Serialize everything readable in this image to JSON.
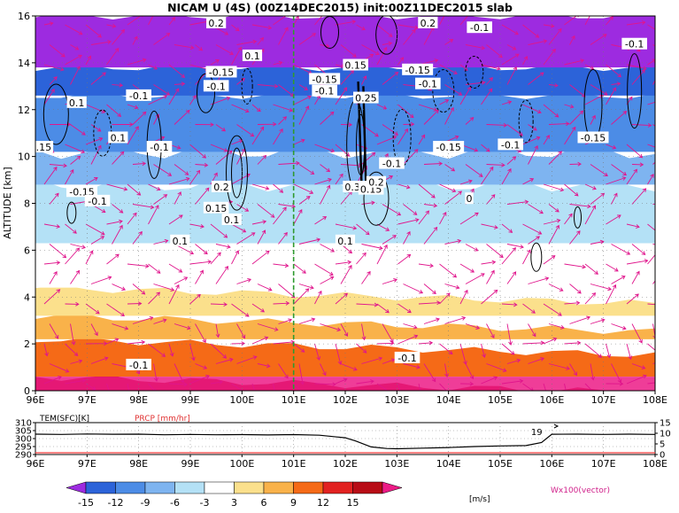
{
  "title": "NICAM U (4S) (00Z14DEC2015) init:00Z11DEC2015 slab",
  "chart_data": [
    {
      "type": "heatmap",
      "title": "NICAM U (4S) (00Z14DEC2015) init:00Z11DEC2015 slab",
      "ylabel": "ALTITUDE [km]",
      "x_ticks": [
        "96E",
        "97E",
        "98E",
        "99E",
        "100E",
        "101E",
        "102E",
        "103E",
        "104E",
        "105E",
        "106E",
        "107E",
        "108E"
      ],
      "xlim": [
        96,
        108
      ],
      "y_ticks": [
        "0",
        "2",
        "4",
        "6",
        "8",
        "10",
        "12",
        "14",
        "16"
      ],
      "ylim": [
        0,
        16
      ],
      "marker_line_x": 101,
      "shading_layers": [
        {
          "top_km": 0.6,
          "value": 15
        },
        {
          "top_km": 2.2,
          "value": 12
        },
        {
          "top_km": 3.2,
          "value": 9
        },
        {
          "top_km": 4.4,
          "value": 6
        },
        {
          "top_km": 6.3,
          "value": 3
        },
        {
          "top_km": 8.8,
          "value": -3
        },
        {
          "top_km": 10.2,
          "value": -6
        },
        {
          "top_km": 12.6,
          "value": -9
        },
        {
          "top_km": 13.8,
          "value": -12
        },
        {
          "top_km": 16.0,
          "value": -15
        }
      ],
      "contour_labels": [
        {
          "text": "0.2",
          "x": 99.5,
          "y": 15.7
        },
        {
          "text": "0.2",
          "x": 103.6,
          "y": 15.7
        },
        {
          "text": "-0.1",
          "x": 104.6,
          "y": 15.5
        },
        {
          "text": "-0.1",
          "x": 107.6,
          "y": 14.8
        },
        {
          "text": "0.1",
          "x": 100.2,
          "y": 14.3
        },
        {
          "text": "0.15",
          "x": 102.2,
          "y": 13.9
        },
        {
          "text": "-0.15",
          "x": 99.6,
          "y": 13.6
        },
        {
          "text": "-0.15",
          "x": 101.6,
          "y": 13.3
        },
        {
          "text": "-0.15",
          "x": 103.4,
          "y": 13.7
        },
        {
          "text": "-0.1",
          "x": 99.5,
          "y": 13.0
        },
        {
          "text": "-0.1",
          "x": 101.6,
          "y": 12.8
        },
        {
          "text": "-0.1",
          "x": 103.6,
          "y": 13.1
        },
        {
          "text": "-0.1",
          "x": 98.0,
          "y": 12.6
        },
        {
          "text": "0.25",
          "x": 102.4,
          "y": 12.5
        },
        {
          "text": "0.1",
          "x": 96.8,
          "y": 12.3
        },
        {
          "text": "0.1",
          "x": 97.6,
          "y": 10.8
        },
        {
          "text": "-0.1",
          "x": 98.4,
          "y": 10.4
        },
        {
          "text": "-0.15",
          "x": 104.0,
          "y": 10.4
        },
        {
          "text": "-0.1",
          "x": 105.2,
          "y": 10.5
        },
        {
          "text": "-0.15",
          "x": 106.8,
          "y": 10.8
        },
        {
          "text": "-0.1",
          "x": 102.9,
          "y": 9.7
        },
        {
          "text": "0.15",
          "x": 96.1,
          "y": 10.4
        },
        {
          "text": "-0.15",
          "x": 96.9,
          "y": 8.5
        },
        {
          "text": "-0.1",
          "x": 97.2,
          "y": 8.1
        },
        {
          "text": "0.2",
          "x": 99.6,
          "y": 8.7
        },
        {
          "text": "0.35",
          "x": 102.2,
          "y": 8.7
        },
        {
          "text": "0.15",
          "x": 102.5,
          "y": 8.6
        },
        {
          "text": "0.2",
          "x": 102.6,
          "y": 8.9
        },
        {
          "text": "0.15",
          "x": 99.5,
          "y": 7.8
        },
        {
          "text": "0.1",
          "x": 99.8,
          "y": 7.3
        },
        {
          "text": "0.1",
          "x": 98.8,
          "y": 6.4
        },
        {
          "text": "0.1",
          "x": 102.0,
          "y": 6.4
        },
        {
          "text": "0",
          "x": 104.4,
          "y": 8.2
        },
        {
          "text": "-0.1",
          "x": 98.0,
          "y": 1.1
        },
        {
          "text": "-0.1",
          "x": 103.2,
          "y": 1.4
        }
      ]
    },
    {
      "type": "line",
      "series": [
        {
          "name": "TEM(SFC)[K]",
          "unit": "[K]"
        },
        {
          "name": "PRCP",
          "unit": "[mm/hr]"
        }
      ],
      "legend_labels": [
        "TEM(SFC)[K]",
        "PRCP [mm/hr]"
      ],
      "left_ticks": [
        "310",
        "305",
        "300",
        "295",
        "290"
      ],
      "right_ticks": [
        "15",
        "10",
        "5",
        "0"
      ],
      "x_ticks": [
        "96E",
        "97E",
        "98E",
        "99E",
        "100E",
        "101E",
        "102E",
        "103E",
        "104E",
        "105E",
        "106E",
        "107E",
        "108E"
      ],
      "xlim": [
        96,
        108
      ],
      "ylim_left": [
        290,
        310
      ],
      "ylim_right": [
        0,
        15
      ],
      "tem": {
        "x": [
          96,
          96.5,
          97,
          97.5,
          98,
          98.5,
          99,
          99.5,
          100,
          100.5,
          101,
          101.5,
          102,
          102.2,
          102.5,
          102.8,
          103,
          103.5,
          104,
          104.5,
          105,
          105.5,
          105.8,
          106,
          106.5,
          107,
          107.5,
          108
        ],
        "y": [
          302.8,
          302.6,
          302.9,
          302.7,
          302.8,
          302.4,
          302.6,
          302.4,
          302.5,
          302.3,
          302.5,
          302.1,
          300.5,
          298.5,
          294.8,
          293.8,
          293.6,
          294.0,
          294.4,
          295.0,
          295.4,
          295.6,
          297.5,
          302.7,
          302.8,
          302.6,
          302.8,
          302.6
        ]
      },
      "annotation": {
        "text": "19",
        "x": 105.7,
        "y": 304.5
      }
    }
  ],
  "colorbar": {
    "ticks": [
      "-15",
      "-12",
      "-9",
      "-6",
      "-3",
      "3",
      "6",
      "9",
      "12",
      "15"
    ],
    "unit": "[m/s]",
    "colors": [
      "#9d2be0",
      "#2c63d9",
      "#4c8ce6",
      "#7eb4f0",
      "#b4e1f6",
      "#ffffff",
      "#fbe08c",
      "#f9b24a",
      "#f56a17",
      "#e22221",
      "#b80c16",
      "#ec1b86"
    ]
  },
  "vector_label": "Wx100(vector)"
}
